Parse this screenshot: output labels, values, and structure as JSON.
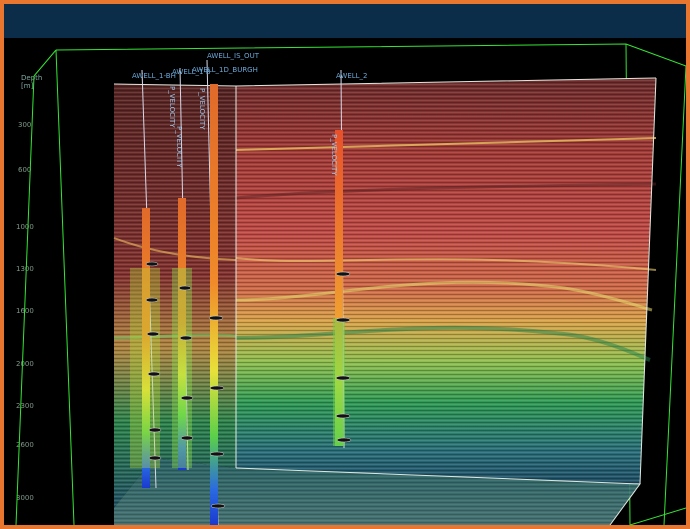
{
  "viewer": {
    "axis_label": "Depth",
    "axis_unit": "m",
    "depth_ticks": [
      "300",
      "600",
      "1000",
      "1300",
      "1600",
      "2000",
      "2300",
      "2600",
      "3000"
    ]
  },
  "wells": [
    {
      "label": "AWELL_1-BH",
      "log": "P_VELOCITY"
    },
    {
      "label": "AWELL_1-B",
      "log": "P_VELOCITY"
    },
    {
      "label": "AWELL_1D_BURGH",
      "log": "P_VELOCITY"
    },
    {
      "label": "AWELL_IS_OUT",
      "log": ""
    },
    {
      "label": "AWELL_2",
      "log": "P_VELOCITY"
    }
  ],
  "colors": {
    "frame_border": "#e9762f",
    "titlebar": "#0c2d4a",
    "bounding_box": "#33e633",
    "horizon_top": "#c84b45",
    "horizon_mid": "#d9a34a",
    "horizon_low": "#2f9a55",
    "horizon_deep": "#2a6f7a"
  }
}
